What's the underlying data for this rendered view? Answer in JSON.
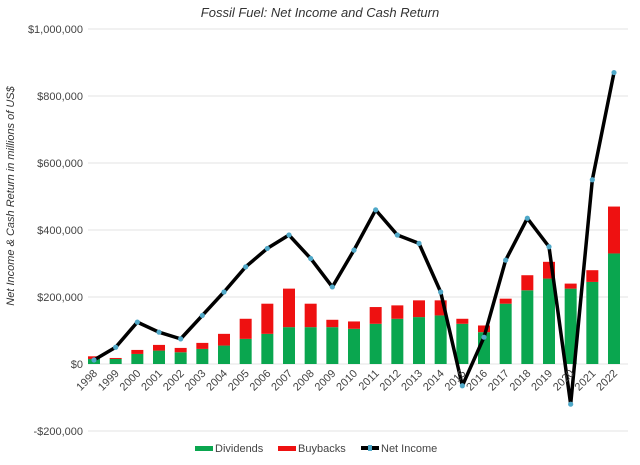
{
  "chart_data": {
    "type": "bar",
    "title": "Fossil Fuel: Net Income and Cash Return",
    "xlabel": "",
    "ylabel": "Net Income & Cash Return in millions of US$",
    "ylim": [
      -200000,
      1000000
    ],
    "yticks": [
      "$1,000,000",
      "$800,000",
      "$600,000",
      "$400,000",
      "$200,000",
      "$0",
      "-$200,000"
    ],
    "ytick_values": [
      1000000,
      800000,
      600000,
      400000,
      200000,
      0,
      -200000
    ],
    "grid": true,
    "legend_position": "bottom",
    "categories": [
      "1998",
      "1999",
      "2000",
      "2001",
      "2002",
      "2003",
      "2004",
      "2005",
      "2006",
      "2007",
      "2008",
      "2009",
      "2010",
      "2011",
      "2012",
      "2013",
      "2014",
      "2015",
      "2016",
      "2017",
      "2018",
      "2019",
      "2020",
      "2021",
      "2022"
    ],
    "series": [
      {
        "name": "Dividends",
        "type": "stacked-bar",
        "color": "#0aa64f",
        "values": [
          15000,
          15000,
          30000,
          40000,
          35000,
          45000,
          55000,
          75000,
          90000,
          110000,
          110000,
          110000,
          105000,
          120000,
          135000,
          140000,
          145000,
          120000,
          95000,
          180000,
          220000,
          255000,
          225000,
          245000,
          330000
        ]
      },
      {
        "name": "Buybacks",
        "type": "stacked-bar",
        "color": "#ee1111",
        "values": [
          8000,
          3000,
          12000,
          17000,
          13000,
          18000,
          35000,
          60000,
          90000,
          115000,
          70000,
          22000,
          22000,
          50000,
          40000,
          50000,
          45000,
          15000,
          20000,
          15000,
          45000,
          50000,
          15000,
          35000,
          140000
        ]
      },
      {
        "name": "Net Income",
        "type": "line",
        "color": "#000000",
        "marker_color": "#4fa8c8",
        "values": [
          12000,
          50000,
          125000,
          95000,
          75000,
          145000,
          215000,
          290000,
          345000,
          385000,
          315000,
          230000,
          340000,
          460000,
          385000,
          360000,
          215000,
          -65000,
          80000,
          310000,
          435000,
          350000,
          -120000,
          550000,
          870000
        ]
      }
    ]
  }
}
